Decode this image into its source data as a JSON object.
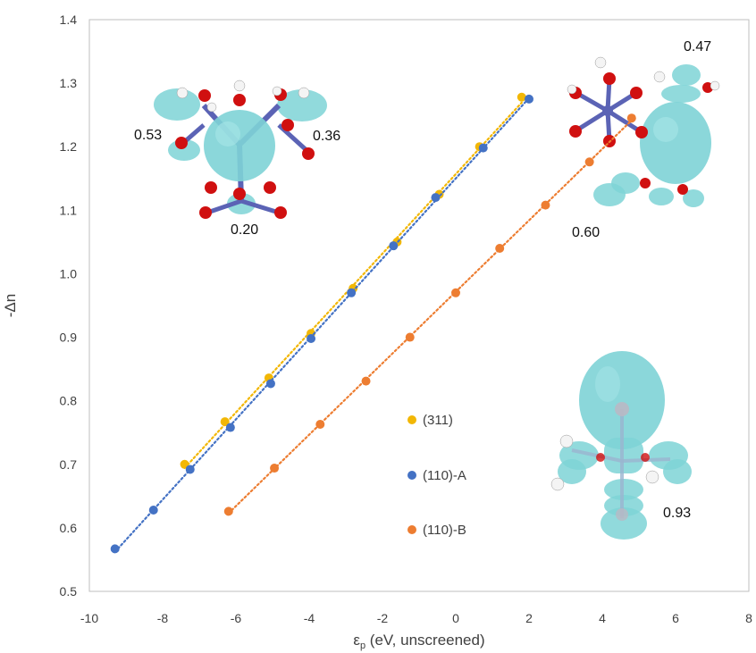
{
  "colors": {
    "series_311": "#F2B705",
    "series_110A": "#4472C4",
    "series_110B": "#ED7D31",
    "isosurface": "#7ED3D6",
    "oxygen": "#D01010",
    "metal": "#5B63B5",
    "hydrogen": "#F4F4F4"
  },
  "chart_data": {
    "type": "scatter",
    "x_label_symbol": "ε",
    "x_label_subscript": "p",
    "x_label_rest": " (eV, unscreened)",
    "y_label": "-Δn",
    "xlim": [
      -10,
      8
    ],
    "ylim": [
      0.5,
      1.4
    ],
    "x_ticks": [
      "-10",
      "-8",
      "-6",
      "-4",
      "-2",
      "0",
      "2",
      "4",
      "6",
      "8"
    ],
    "y_ticks": [
      "0.5",
      "0.6",
      "0.7",
      "0.8",
      "0.9",
      "1.0",
      "1.1",
      "1.2",
      "1.3",
      "1.4"
    ],
    "grid": false,
    "trendlines": "dotted",
    "legend_position": "center-right",
    "series": [
      {
        "name": "(311)",
        "color": "#F2B705",
        "x": [
          -7.4,
          -6.3,
          -5.1,
          -3.95,
          -2.8,
          -1.6,
          -0.45,
          0.65,
          1.8
        ],
        "y": [
          0.7,
          0.767,
          0.836,
          0.906,
          0.977,
          1.05,
          1.125,
          1.2,
          1.278
        ]
      },
      {
        "name": "(110)-A",
        "color": "#4472C4",
        "x": [
          -9.3,
          -8.25,
          -7.25,
          -6.15,
          -5.05,
          -3.95,
          -2.85,
          -1.7,
          -0.55,
          0.75,
          2.0
        ],
        "y": [
          0.567,
          0.628,
          0.692,
          0.758,
          0.827,
          0.898,
          0.97,
          1.044,
          1.12,
          1.198,
          1.275
        ]
      },
      {
        "name": "(110)-B",
        "color": "#ED7D31",
        "x": [
          -6.2,
          -4.95,
          -3.7,
          -2.45,
          -1.25,
          0.0,
          1.2,
          2.45,
          3.65,
          4.8
        ],
        "y": [
          0.626,
          0.694,
          0.763,
          0.831,
          0.9,
          0.97,
          1.04,
          1.108,
          1.176,
          1.245
        ]
      }
    ]
  },
  "annotations": {
    "a053": "0.53",
    "a036": "0.36",
    "a020": "0.20",
    "a047": "0.47",
    "a060": "0.60",
    "a093": "0.93"
  }
}
